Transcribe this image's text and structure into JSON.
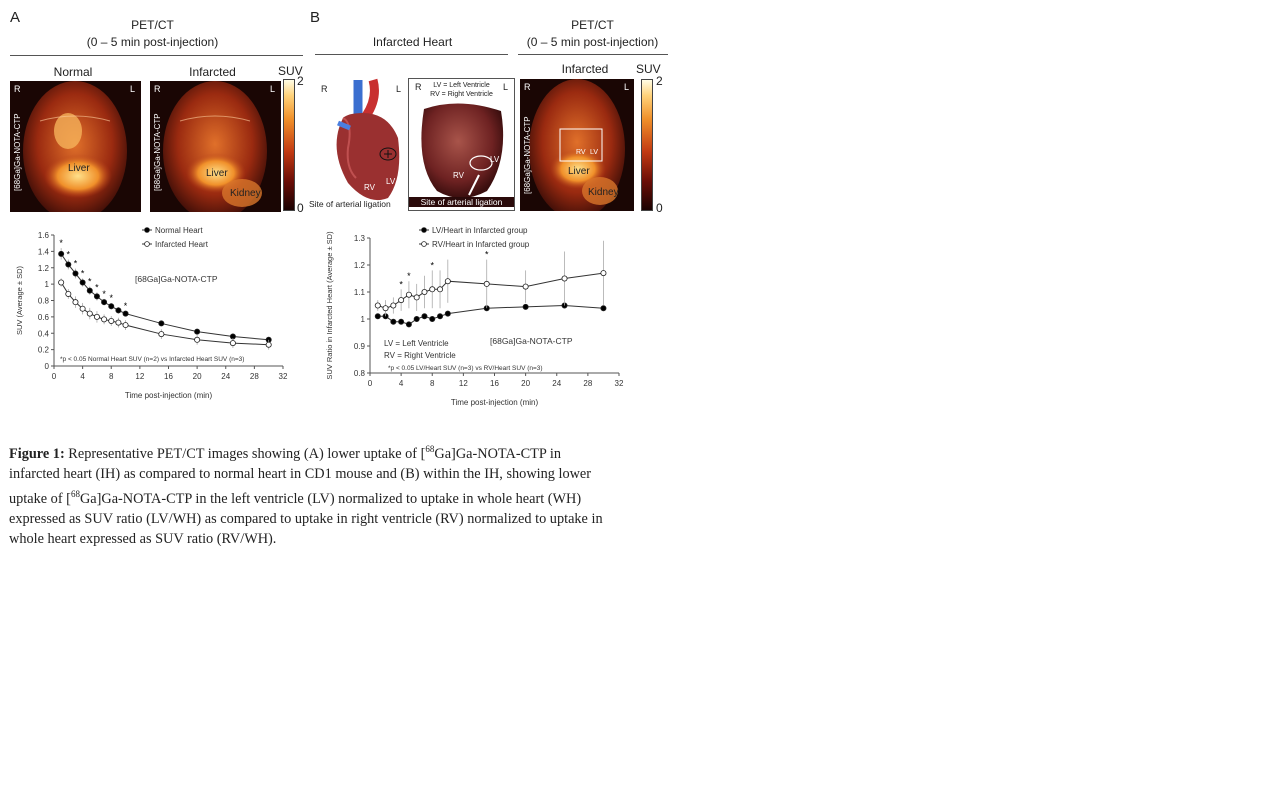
{
  "panelA": {
    "letter": "A",
    "header_line1": "PET/CT",
    "header_line2": "(0 – 5 min post-injection)",
    "label_normal": "Normal",
    "label_infarcted": "Infarcted",
    "suv_label": "SUV",
    "cbar_max": "2",
    "cbar_min": "0",
    "orient_r": "R",
    "orient_l": "L",
    "tracer": "[68Ga]Ga-NOTA-CTP",
    "liver": "Liver",
    "kidney": "Kidney"
  },
  "panelB": {
    "letter": "B",
    "header_left": "Infarcted Heart",
    "header_right_line1": "PET/CT",
    "header_right_line2": "(0 – 5 min post-injection)",
    "label_infarcted": "Infarcted",
    "suv_label": "SUV",
    "cbar_max": "2",
    "cbar_min": "0",
    "orient_r": "R",
    "orient_l": "L",
    "legend_lv": "LV = Left Ventricle",
    "legend_rv": "RV = Right Ventricle",
    "rv": "RV",
    "lv": "LV",
    "ligation_caption_1": "Site of arterial ligation",
    "ligation_caption_2": "Site of arterial ligation",
    "liver": "Liver",
    "kidney": "Kidney",
    "tracer": "[68Ga]Ga-NOTA-CTP"
  },
  "colors": {
    "filled_marker": "#000000",
    "open_marker": "#ffffff",
    "line": "#333333",
    "error_bar": "#aaaaaa"
  },
  "chart_data": [
    {
      "type": "line",
      "xlabel": "Time post-injection (min)",
      "ylabel": "SUV (Average ± SD)",
      "xlim": [
        0,
        32
      ],
      "ylim": [
        0,
        1.6
      ],
      "xticks": [
        0,
        4,
        8,
        12,
        16,
        20,
        24,
        28,
        32
      ],
      "yticks": [
        0,
        0.2,
        0.4,
        0.6,
        0.8,
        1,
        1.2,
        1.4,
        1.6
      ],
      "annotation": "[68Ga]Ga-NOTA-CTP",
      "footnote": "*p < 0.05 Normal Heart SUV (n=2) vs Infarcted Heart SUV (n=3)",
      "legend": "top",
      "series": [
        {
          "name": "Normal Heart",
          "marker": "filled",
          "x": [
            1,
            2,
            3,
            4,
            5,
            6,
            7,
            8,
            9,
            10,
            15,
            20,
            25,
            30
          ],
          "y": [
            1.37,
            1.24,
            1.13,
            1.02,
            0.92,
            0.85,
            0.78,
            0.73,
            0.68,
            0.64,
            0.52,
            0.42,
            0.36,
            0.32
          ]
        },
        {
          "name": "Infarcted Heart",
          "marker": "open",
          "x": [
            1,
            2,
            3,
            4,
            5,
            6,
            7,
            8,
            9,
            10,
            15,
            20,
            25,
            30
          ],
          "y": [
            1.02,
            0.88,
            0.78,
            0.7,
            0.64,
            0.6,
            0.57,
            0.55,
            0.53,
            0.5,
            0.39,
            0.32,
            0.28,
            0.26
          ]
        }
      ],
      "significance_x": [
        1,
        2,
        3,
        4,
        5,
        6,
        7,
        8,
        10
      ]
    },
    {
      "type": "line",
      "xlabel": "Time post-injection (min)",
      "ylabel": "SUV Ratio in Infarcted Heart (Average ± SD)",
      "xlim": [
        0,
        32
      ],
      "ylim": [
        0.8,
        1.3
      ],
      "xticks": [
        0,
        4,
        8,
        12,
        16,
        20,
        24,
        28,
        32
      ],
      "yticks": [
        0.8,
        0.9,
        1,
        1.1,
        1.2,
        1.3
      ],
      "annotation": "[68Ga]Ga-NOTA-CTP",
      "legend_abbrev_1": "LV = Left Ventricle",
      "legend_abbrev_2": "RV = Right Ventricle",
      "footnote": "*p < 0.05 LV/Heart SUV (n=3) vs RV/Heart SUV (n=3)",
      "legend": "top",
      "series": [
        {
          "name": "LV/Heart in Infarcted group",
          "marker": "filled",
          "x": [
            1,
            2,
            3,
            4,
            5,
            6,
            7,
            8,
            9,
            10,
            15,
            20,
            25,
            30
          ],
          "y": [
            1.01,
            1.01,
            0.99,
            0.99,
            0.98,
            1.0,
            1.01,
            1.0,
            1.01,
            1.02,
            1.04,
            1.045,
            1.05,
            1.04
          ]
        },
        {
          "name": "RV/Heart in Infarcted group",
          "marker": "open",
          "x": [
            1,
            2,
            3,
            4,
            5,
            6,
            7,
            8,
            9,
            10,
            15,
            20,
            25,
            30
          ],
          "y": [
            1.05,
            1.04,
            1.05,
            1.07,
            1.09,
            1.08,
            1.1,
            1.11,
            1.11,
            1.14,
            1.13,
            1.12,
            1.15,
            1.17
          ]
        }
      ],
      "significance_x": [
        4,
        5,
        8,
        15
      ]
    }
  ],
  "caption": {
    "bold": "Figure 1:",
    "line1": " Representative PET/CT images showing (A) lower uptake of [",
    "sup1": "68",
    "line1b": "Ga]Ga-NOTA-CTP in",
    "line2": "infarcted heart (IH) as compared to normal heart in CD1 mouse and (B) within the IH, showing lower",
    "line3a": "uptake of [",
    "sup2": "68",
    "line3b": "Ga]Ga-NOTA-CTP in the left ventricle (LV) normalized to uptake in whole heart (WH)",
    "line4": "expressed as SUV ratio (LV/WH) as compared to uptake in right ventricle (RV) normalized to uptake in",
    "line5": "whole heart expressed as SUV ratio (RV/WH)."
  }
}
